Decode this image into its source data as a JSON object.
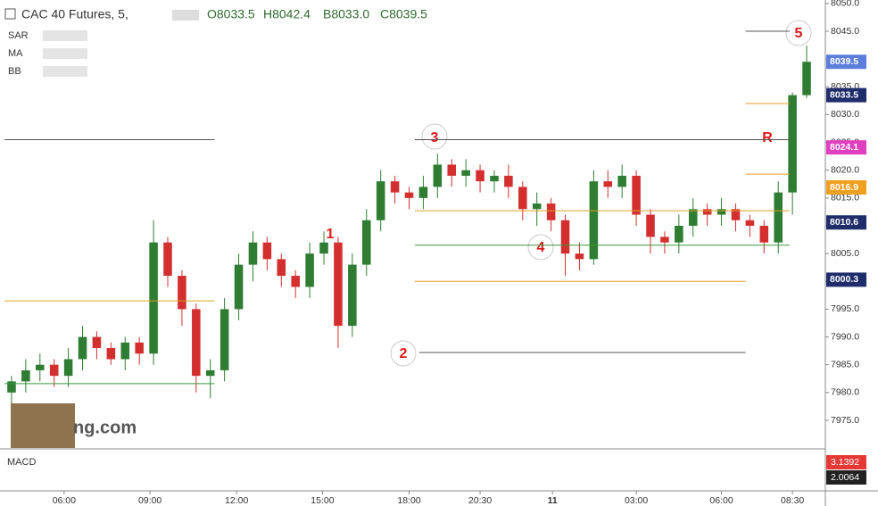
{
  "chart_data": {
    "type": "candlestick",
    "title": "CAC 40 Futures, 5,",
    "ohlc_legend": [
      "O8033.5",
      "H8042.4",
      "B8033.0",
      "C8039.5"
    ],
    "indicators": [
      "SAR",
      "MA",
      "BB"
    ],
    "watermark": "ng.com",
    "up_color": "#2e7d32",
    "down_color": "#d32f2f",
    "open": [
      7980,
      7982,
      7984,
      7985,
      7983,
      7986,
      7990,
      7988,
      7986,
      7989,
      7987,
      8007,
      8001,
      7995,
      7983,
      7984,
      7995,
      8003,
      8007,
      8004,
      8001,
      7999,
      8005,
      8007,
      7992,
      8003,
      8011,
      8018,
      8016,
      8015,
      8017,
      8021,
      8019,
      8020,
      8018,
      8019,
      8017,
      8013,
      8014,
      8011,
      8005,
      8004,
      8018,
      8017,
      8019,
      8012,
      8008,
      8007,
      8010,
      8013,
      8012,
      8013,
      8011,
      8010,
      8007,
      8016,
      8033.5
    ],
    "high": [
      7983,
      7986,
      7987,
      7986,
      7988,
      7992,
      7991,
      7989,
      7990,
      7990,
      8011,
      8008,
      8002,
      7996,
      7986,
      7997,
      8005,
      8009,
      8008,
      8005,
      8002,
      8007,
      8009,
      8008,
      8005,
      8013,
      8020,
      8019,
      8017,
      8019,
      8023,
      8022,
      8022,
      8021,
      8020,
      8021,
      8018,
      8016,
      8015,
      8012,
      8007,
      8020,
      8020,
      8021,
      8020,
      8013,
      8009,
      8012,
      8015,
      8014,
      8015,
      8014,
      8012,
      8011,
      8018,
      8034,
      8042.4
    ],
    "low": [
      7978,
      7980,
      7982,
      7981,
      7981,
      7984,
      7986,
      7985,
      7984,
      7985,
      7985,
      7999,
      7992,
      7980,
      7979,
      7982,
      7993,
      8000,
      8002,
      7999,
      7997,
      7997,
      8003,
      7988,
      7990,
      8001,
      8009,
      8014,
      8013,
      8013,
      8015,
      8017,
      8017,
      8016,
      8016,
      8015,
      8011,
      8010,
      8009,
      8001,
      8002,
      8003,
      8015,
      8015,
      8010,
      8005,
      8005,
      8005,
      8008,
      8010,
      8010,
      8009,
      8008,
      8005,
      8005,
      8012,
      8033.0
    ],
    "close": [
      7982,
      7984,
      7985,
      7983,
      7986,
      7990,
      7988,
      7986,
      7989,
      7987,
      8007,
      8001,
      7995,
      7983,
      7984,
      7995,
      8003,
      8007,
      8004,
      8001,
      7999,
      8005,
      8007,
      7992,
      8003,
      8011,
      8018,
      8016,
      8015,
      8017,
      8021,
      8019,
      8020,
      8018,
      8019,
      8017,
      8013,
      8014,
      8011,
      8005,
      8004,
      8018,
      8017,
      8019,
      8012,
      8008,
      8007,
      8010,
      8013,
      8012,
      8013,
      8011,
      8010,
      8007,
      8016,
      8033.5,
      8039.5
    ],
    "xlim": [
      0,
      57
    ],
    "xticks": [
      {
        "value": 4.2,
        "label": "06:00"
      },
      {
        "value": 10.25,
        "label": "09:00"
      },
      {
        "value": 16.35,
        "label": "12:00"
      },
      {
        "value": 22.4,
        "label": "15:00"
      },
      {
        "value": 28.5,
        "label": "18:00"
      },
      {
        "value": 33.5,
        "label": "20:30"
      },
      {
        "value": 38.6,
        "label": "11"
      },
      {
        "value": 44.5,
        "label": "03:00"
      },
      {
        "value": 50.5,
        "label": "06:00"
      },
      {
        "value": 55.5,
        "label": "08:30"
      }
    ],
    "ylim": [
      7970,
      8050
    ],
    "yticks": [
      {
        "value": 7975,
        "label": "7975.0"
      },
      {
        "value": 7980,
        "label": "7980.0"
      },
      {
        "value": 7985,
        "label": "7985.0"
      },
      {
        "value": 7990,
        "label": "7990.0"
      },
      {
        "value": 7995,
        "label": "7995.0"
      },
      {
        "value": 8000,
        "label": "8000.0"
      },
      {
        "value": 8005,
        "label": "8005.0"
      },
      {
        "value": 8010,
        "label": "8010.0"
      },
      {
        "value": 8015,
        "label": "8015.0"
      },
      {
        "value": 8020,
        "label": "8020.0"
      },
      {
        "value": 8025,
        "label": "8025.0"
      },
      {
        "value": 8030,
        "label": "8030.0"
      },
      {
        "value": 8035,
        "label": "8035.0"
      },
      {
        "value": 8040,
        "label": "8040.0"
      },
      {
        "value": 8045,
        "label": "8045.0"
      },
      {
        "value": 8050,
        "label": "8050.0"
      }
    ],
    "levels": [
      {
        "value": 8025.5,
        "color": "#555555",
        "from": 0,
        "to": 14.8
      },
      {
        "value": 7996.5,
        "color": "#e0a020",
        "from": 0,
        "to": 14.8
      },
      {
        "value": 7981.6,
        "color": "#3a9a3a",
        "from": 0,
        "to": 14.8
      },
      {
        "value": 8025.5,
        "color": "#555555",
        "from": 28.9,
        "to": 55.3
      },
      {
        "value": 8012.7,
        "color": "#e0a020",
        "from": 28.9,
        "to": 55.3
      },
      {
        "value": 8006.5,
        "color": "#3a9a3a",
        "from": 28.9,
        "to": 55.3
      },
      {
        "value": 8000,
        "color": "#e0a020",
        "from": 28.9,
        "to": 52.2
      },
      {
        "value": 7987.2,
        "color": "#555555",
        "from": 29.2,
        "to": 52.2
      },
      {
        "value": 8045,
        "color": "#555555",
        "from": 52.2,
        "to": 55.3
      },
      {
        "value": 8032,
        "color": "#e0a020",
        "from": 52.2,
        "to": 55.3
      },
      {
        "value": 8019.3,
        "color": "#e0a020",
        "from": 52.2,
        "to": 55.3
      }
    ],
    "wave_labels": [
      "1",
      "2",
      "3",
      "4",
      "5",
      "R"
    ],
    "price_badges": [
      {
        "value": 8039.5,
        "color": "#5b7fdb"
      },
      {
        "value": 8033.5,
        "color": "#1f2d6b"
      },
      {
        "value": 8024.1,
        "color": "#e040c0"
      },
      {
        "value": 8016.9,
        "color": "#f0a020"
      },
      {
        "value": 8010.6,
        "color": "#1f2d6b"
      },
      {
        "value": 8000.3,
        "color": "#1f2d6b"
      }
    ],
    "macd": {
      "name": "MACD",
      "badges": [
        {
          "value": 3.1392,
          "color": "#e53935"
        },
        {
          "value": 2.0064,
          "color": "#222222"
        }
      ]
    }
  }
}
